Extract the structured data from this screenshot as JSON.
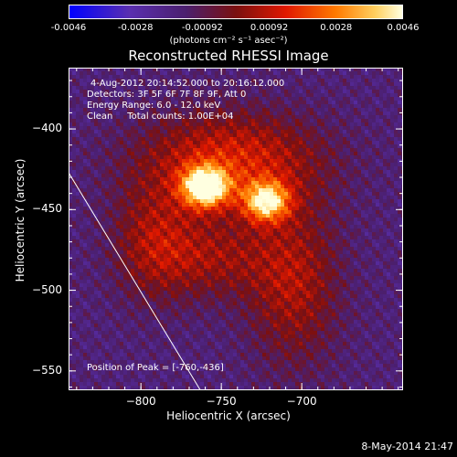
{
  "colorbar": {
    "ticks": [
      "-0.0046",
      "-0.0028",
      "-0.00092",
      "0.00092",
      "0.0028",
      "0.0046"
    ],
    "units": "(photons cm⁻² s⁻¹ asec⁻²)",
    "range": [
      -0.0046,
      0.0046
    ],
    "colors": [
      "#0000ff",
      "#6a3aa8",
      "#4b1f6e",
      "#b31a00",
      "#ff4a00",
      "#ffb040",
      "#ffffd0"
    ]
  },
  "chart_data": {
    "type": "heatmap",
    "title": "Reconstructed RHESSI Image",
    "xlabel": "Heliocentric X (arcsec)",
    "ylabel": "Heliocentric Y (arcsec)",
    "xlim": [
      -845,
      -637
    ],
    "ylim": [
      -562,
      -362
    ],
    "xticks": [
      "-800",
      "-750",
      "-700"
    ],
    "yticks": [
      "-400",
      "-450",
      "-500",
      "-550"
    ],
    "peaks": [
      {
        "x": -760,
        "y": -436,
        "value": 0.0046
      },
      {
        "x": -724,
        "y": -444,
        "value": 0.0038
      }
    ],
    "limb_line": [
      [
        -845,
        -427
      ],
      [
        -763,
        -562
      ]
    ]
  },
  "info": {
    "time_range": "4-Aug-2012 20:14:52.000 to 20:16:12.000",
    "detectors": "Detectors: 3F 5F 6F 7F 8F 9F, Att 0",
    "energy": "Energy Range: 6.0 - 12.0 keV",
    "clean": "Clean     Total counts: 1.00E+04",
    "peak_prefix": "Position of Peak = ",
    "peak_value": "[-760,-436]"
  },
  "stamp": "8-May-2014 21:47"
}
